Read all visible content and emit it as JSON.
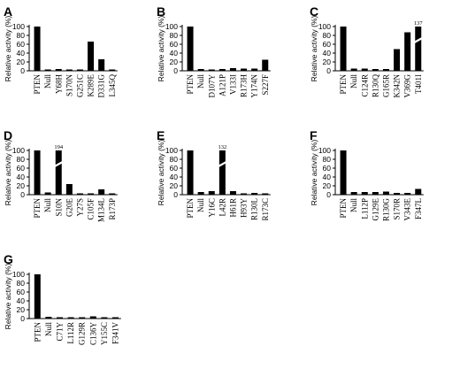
{
  "chart_data": [
    {
      "type": "bar",
      "panel": "A",
      "ylabel": "Relative activity (%)",
      "ylim": [
        0,
        100
      ],
      "yticks": [
        "0",
        "20",
        "40",
        "60",
        "80",
        "100"
      ],
      "categories": [
        "PTEN",
        "Null",
        "Y68H",
        "S170N",
        "G251C",
        "K289E",
        "D331G",
        "L345Q"
      ],
      "values": [
        100,
        3,
        4,
        3,
        3,
        66,
        26,
        3
      ]
    },
    {
      "type": "bar",
      "panel": "B",
      "ylabel": "Relative activity (%)",
      "ylim": [
        0,
        100
      ],
      "yticks": [
        "0",
        "20",
        "40",
        "60",
        "80",
        "100"
      ],
      "categories": [
        "PTEN",
        "Null",
        "D107Y",
        "A121P",
        "V133I",
        "R173H",
        "Y174N",
        "S227F"
      ],
      "values": [
        100,
        4,
        3,
        4,
        6,
        5,
        5,
        25
      ]
    },
    {
      "type": "bar",
      "panel": "C",
      "ylabel": "Relative activity (%)",
      "ylim": [
        0,
        100
      ],
      "yticks": [
        "0",
        "20",
        "40",
        "60",
        "80",
        "100"
      ],
      "categories": [
        "PTEN",
        "Null",
        "C124R",
        "R130Q",
        "G165R",
        "K342N",
        "V369G",
        "T401I"
      ],
      "values": [
        100,
        5,
        5,
        4,
        4,
        49,
        87,
        137
      ],
      "value_labels": [
        "",
        "",
        "",
        "",
        "",
        "",
        "",
        "137"
      ]
    },
    {
      "type": "bar",
      "panel": "D",
      "ylabel": "Relative activity (%)",
      "ylim": [
        0,
        100
      ],
      "yticks": [
        "0",
        "20",
        "40",
        "60",
        "80",
        "100"
      ],
      "categories": [
        "PTEN",
        "Null",
        "S10N",
        "G20E",
        "Y27S",
        "C105F",
        "M134L",
        "R173P"
      ],
      "values": [
        100,
        5,
        194,
        24,
        3,
        3,
        12,
        3
      ],
      "value_labels": [
        "",
        "",
        "194",
        "",
        "",
        "",
        "",
        ""
      ]
    },
    {
      "type": "bar",
      "panel": "E",
      "ylabel": "Relative activity (%)",
      "ylim": [
        0,
        100
      ],
      "yticks": [
        "0",
        "20",
        "40",
        "60",
        "80",
        "100"
      ],
      "categories": [
        "PTEN",
        "Null",
        "Y16C",
        "L42R",
        "H61R",
        "H93Y",
        "R130L",
        "R173C"
      ],
      "values": [
        100,
        6,
        8,
        132,
        8,
        3,
        4,
        3
      ],
      "value_labels": [
        "",
        "",
        "",
        "132",
        "",
        "",
        "",
        ""
      ]
    },
    {
      "type": "bar",
      "panel": "F",
      "ylabel": "Relative activity (%)",
      "ylim": [
        0,
        100
      ],
      "yticks": [
        "0",
        "20",
        "40",
        "60",
        "80",
        "100"
      ],
      "categories": [
        "PTEN",
        "Null",
        "L112P",
        "G129E",
        "R130G",
        "S170R",
        "V343E",
        "F347L"
      ],
      "values": [
        100,
        6,
        6,
        6,
        7,
        4,
        4,
        13
      ]
    },
    {
      "type": "bar",
      "panel": "G",
      "ylabel": "Relative activity (%)",
      "ylim": [
        0,
        100
      ],
      "yticks": [
        "0",
        "20",
        "40",
        "60",
        "80",
        "100"
      ],
      "categories": [
        "PTEN",
        "Null",
        "C71Y",
        "L112R",
        "G129R",
        "C136Y",
        "Y155C",
        "F341V"
      ],
      "values": [
        100,
        4,
        3,
        3,
        3,
        5,
        3,
        3
      ]
    }
  ]
}
